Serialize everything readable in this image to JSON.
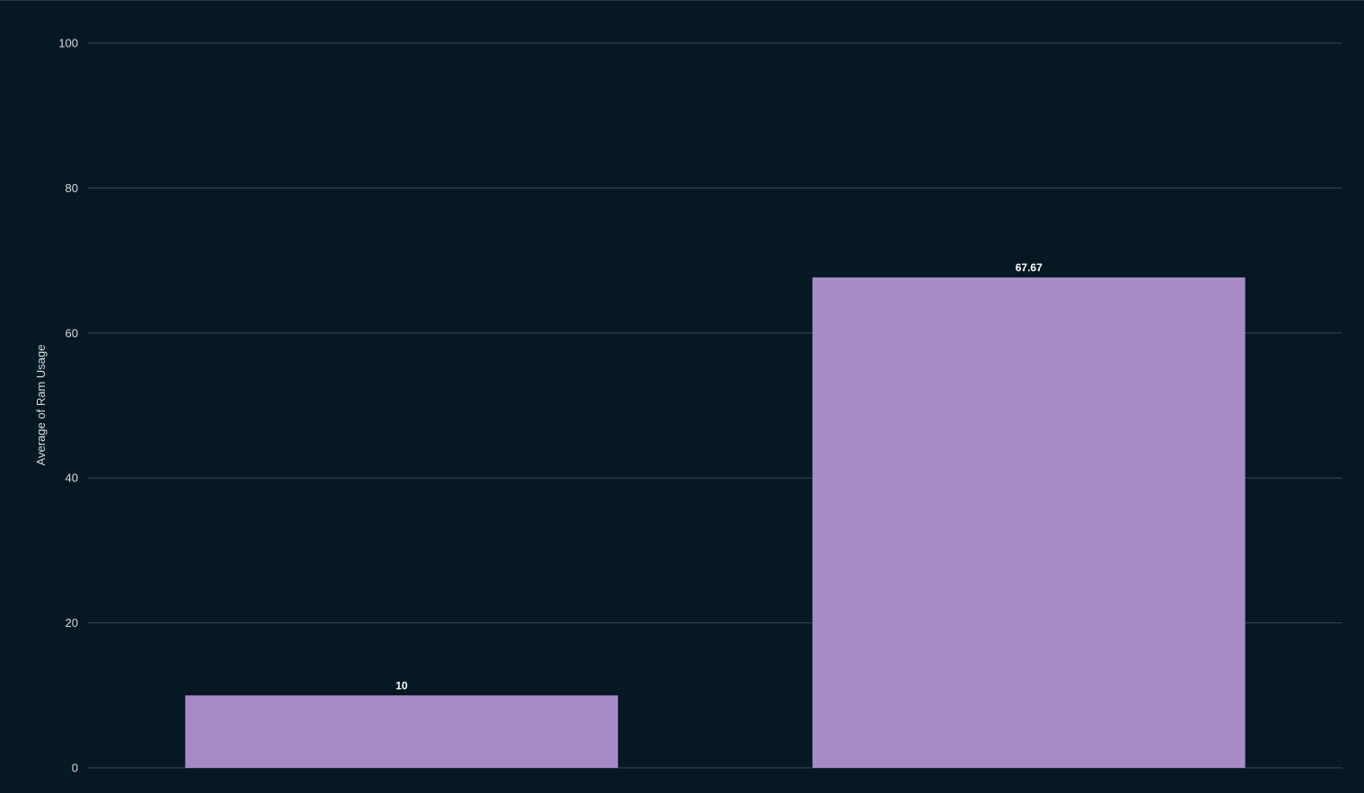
{
  "chart_data": {
    "type": "bar",
    "title": "",
    "xlabel": "",
    "ylabel": "Average of Ram Usage",
    "ylim": [
      0,
      100
    ],
    "yticks": [
      0,
      20,
      40,
      60,
      80,
      100
    ],
    "categories": [
      "",
      ""
    ],
    "values": [
      10,
      67.67
    ],
    "data_labels": [
      "10",
      "67.67"
    ],
    "grid": true,
    "legend": "none",
    "colors": {
      "background": "#061822",
      "bar": "#a78bc6",
      "grid": "#3a4c56",
      "text": "#d8dde0",
      "data_label": "#ffffff"
    }
  }
}
